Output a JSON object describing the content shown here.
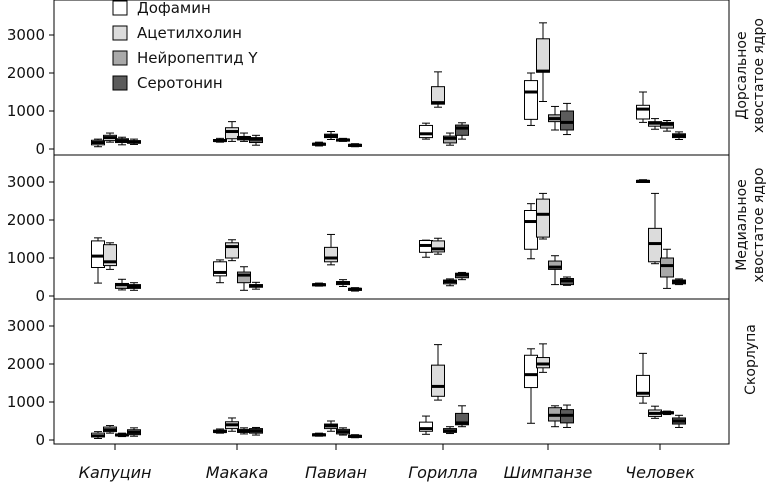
{
  "chart_data": {
    "type": "boxplot",
    "title": "",
    "categories": [
      "Капуцин",
      "Макака",
      "Павиан",
      "Горилла",
      "Шимпанзе",
      "Человек"
    ],
    "ylim": [
      0,
      3300
    ],
    "yticks": [
      "0",
      "1000",
      "2000",
      "3000"
    ],
    "series": [
      {
        "name": "Дофамин",
        "color": "#ffffff"
      },
      {
        "name": "Ацетилхолин",
        "color": "#dcdcdc"
      },
      {
        "name": "Нейропептид Y",
        "color": "#a9a9a9"
      },
      {
        "name": "Серотонин",
        "color": "#5c5c5c"
      }
    ],
    "panels": [
      {
        "label_lines": [
          "Дорсальное",
          "хвостатое ядро"
        ],
        "boxes": [
          [
            [
              60,
              110,
              170,
              230,
              260
            ],
            [
              180,
              220,
              300,
              360,
              420
            ],
            [
              110,
              170,
              220,
              270,
              310
            ],
            [
              120,
              150,
              190,
              220,
              260
            ]
          ],
          [
            [
              180,
              200,
              220,
              250,
              280
            ],
            [
              200,
              270,
              460,
              560,
              720
            ],
            [
              200,
              240,
              290,
              330,
              420
            ],
            [
              100,
              170,
              260,
              300,
              360
            ]
          ],
          [
            [
              80,
              100,
              130,
              150,
              180
            ],
            [
              250,
              300,
              340,
              390,
              460
            ],
            [
              200,
              220,
              240,
              260,
              280
            ],
            [
              60,
              80,
              100,
              120,
              140
            ]
          ],
          [
            [
              260,
              300,
              400,
              620,
              680
            ],
            [
              1100,
              1180,
              1220,
              1640,
              2030
            ],
            [
              100,
              160,
              280,
              340,
              420
            ],
            [
              260,
              360,
              550,
              630,
              690
            ]
          ],
          [
            [
              620,
              780,
              1500,
              1800,
              2000
            ],
            [
              1250,
              2020,
              2050,
              2900,
              3320
            ],
            [
              500,
              720,
              800,
              900,
              1120
            ],
            [
              380,
              500,
              700,
              1000,
              1200
            ]
          ],
          [
            [
              700,
              790,
              1050,
              1150,
              1500
            ],
            [
              520,
              600,
              680,
              720,
              800
            ],
            [
              470,
              550,
              650,
              700,
              750
            ],
            [
              250,
              300,
              350,
              400,
              450
            ]
          ]
        ]
      },
      {
        "label_lines": [
          "Медиальное",
          "хвостатое ядро"
        ],
        "boxes": [
          [
            [
              340,
              750,
              1050,
              1450,
              1530
            ],
            [
              700,
              800,
              900,
              1350,
              1400
            ],
            [
              160,
              200,
              300,
              330,
              440
            ],
            [
              150,
              200,
              250,
              300,
              350
            ]
          ],
          [
            [
              350,
              530,
              620,
              900,
              950
            ],
            [
              930,
              1000,
              1300,
              1400,
              1480
            ],
            [
              150,
              350,
              550,
              630,
              770
            ],
            [
              180,
              230,
              270,
              300,
              360
            ]
          ],
          [
            [
              260,
              280,
              300,
              320,
              340
            ],
            [
              820,
              900,
              1000,
              1280,
              1620
            ],
            [
              250,
              300,
              350,
              380,
              430
            ],
            [
              130,
              150,
              180,
              200,
              220
            ]
          ],
          [
            [
              1020,
              1150,
              1330,
              1460,
              1470
            ],
            [
              1100,
              1160,
              1240,
              1450,
              1520
            ],
            [
              270,
              320,
              380,
              420,
              450
            ],
            [
              430,
              480,
              560,
              600,
              620
            ]
          ],
          [
            [
              980,
              1230,
              1960,
              2250,
              2430
            ],
            [
              1500,
              1550,
              2150,
              2550,
              2700
            ],
            [
              300,
              700,
              760,
              920,
              1060
            ],
            [
              280,
              300,
              400,
              460,
              500
            ]
          ],
          [
            [
              3000,
              3010,
              3020,
              3040,
              3060
            ],
            [
              850,
              900,
              1380,
              1780,
              2700
            ],
            [
              200,
              500,
              800,
              1000,
              1230
            ],
            [
              300,
              320,
              370,
              420,
              450
            ]
          ]
        ]
      },
      {
        "label_lines": [
          "Скорлупа"
        ],
        "boxes": [
          [
            [
              40,
              80,
              110,
              180,
              220
            ],
            [
              180,
              220,
              270,
              340,
              380
            ],
            [
              90,
              110,
              130,
              160,
              180
            ],
            [
              100,
              140,
              200,
              270,
              320
            ]
          ],
          [
            [
              180,
              200,
              220,
              260,
              290
            ],
            [
              230,
              300,
              400,
              480,
              580
            ],
            [
              160,
              200,
              230,
              280,
              320
            ],
            [
              130,
              180,
              240,
              300,
              330
            ]
          ],
          [
            [
              100,
              120,
              140,
              160,
              180
            ],
            [
              230,
              300,
              370,
              420,
              500
            ],
            [
              130,
              160,
              220,
              280,
              320
            ],
            [
              60,
              80,
              100,
              120,
              140
            ]
          ],
          [
            [
              150,
              230,
              300,
              470,
              630
            ],
            [
              1050,
              1150,
              1410,
              1970,
              2510
            ],
            [
              170,
              200,
              240,
              300,
              350
            ],
            [
              350,
              400,
              450,
              700,
              900
            ]
          ],
          [
            [
              440,
              1380,
              1720,
              2230,
              2400
            ],
            [
              1780,
              1900,
              2000,
              2170,
              2530
            ],
            [
              350,
              500,
              650,
              850,
              900
            ],
            [
              330,
              450,
              650,
              800,
              920
            ]
          ],
          [
            [
              970,
              1150,
              1230,
              1700,
              2280
            ],
            [
              570,
              620,
              700,
              790,
              890
            ],
            [
              670,
              700,
              720,
              740,
              760
            ],
            [
              330,
              420,
              500,
              580,
              650
            ]
          ]
        ]
      }
    ]
  }
}
